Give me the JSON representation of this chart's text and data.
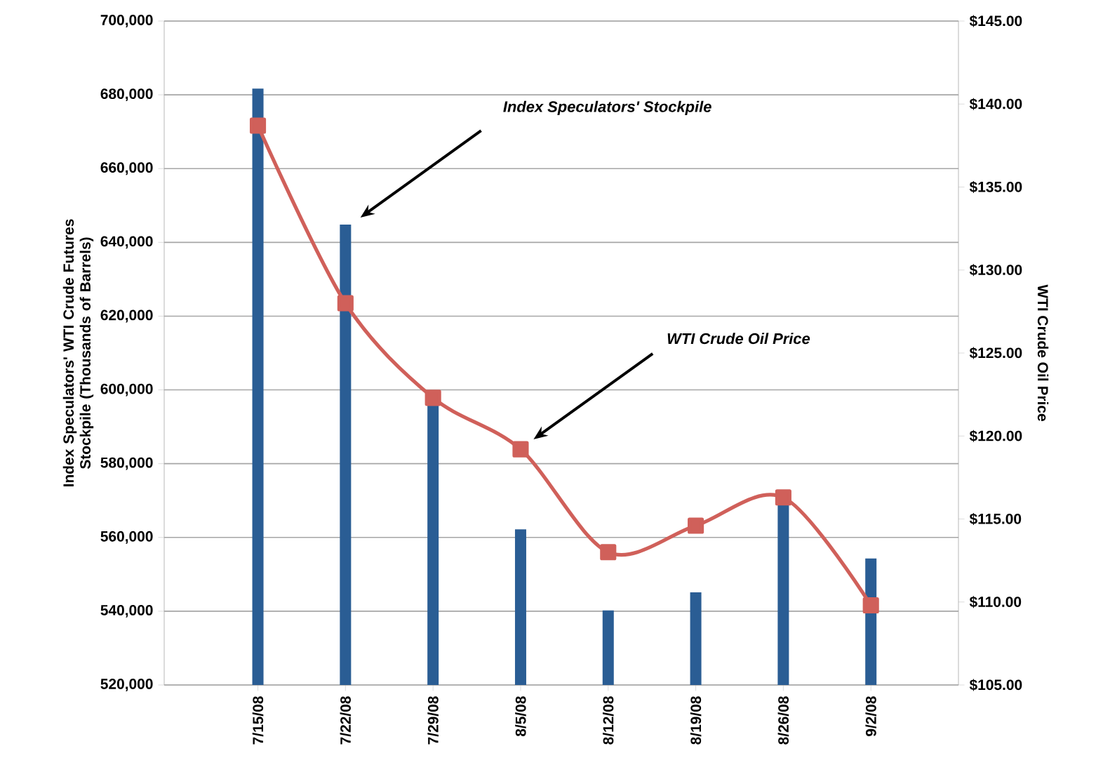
{
  "chart_data": {
    "type": "bar",
    "ylabel": "Index Speculators' WTI Crude Futures Stockpile (Thousands of Barrels)",
    "y2label": "WTI Crude Oil Price",
    "categories": [
      "7/15/08",
      "7/22/08",
      "7/29/08",
      "8/5/08",
      "8/12/08",
      "8/19/08",
      "8/26/08",
      "9/2/08"
    ],
    "series": [
      {
        "color": "#2a5d94",
        "values": [
          681700,
          644800,
          596000,
          562200,
          540200,
          545100,
          569100,
          554300
        ]
      },
      {
        "type": "line",
        "axis": "y2",
        "color": "#d0605a",
        "marker": "square",
        "line_style": "solid",
        "values": [
          138.7,
          128.0,
          122.3,
          119.2,
          113.0,
          114.6,
          116.3,
          109.8
        ]
      }
    ],
    "annotations": [
      "Index Speculators' Stockpile",
      "WTI Crude Oil Price"
    ],
    "ylim": [
      520000,
      700000
    ],
    "yticks": [
      {
        "value": 520000,
        "label": "520,000"
      },
      {
        "value": 540000,
        "label": "540,000"
      },
      {
        "value": 560000,
        "label": "560,000"
      },
      {
        "value": 580000,
        "label": "580,000"
      },
      {
        "value": 600000,
        "label": "600,000"
      },
      {
        "value": 620000,
        "label": "620,000"
      },
      {
        "value": 640000,
        "label": "640,000"
      },
      {
        "value": 660000,
        "label": "660,000"
      },
      {
        "value": 680000,
        "label": "680,000"
      },
      {
        "value": 700000,
        "label": "700,000"
      }
    ],
    "y2lim": [
      105,
      145
    ],
    "y2ticks": [
      {
        "value": 105,
        "label": "$105.00"
      },
      {
        "value": 110,
        "label": "$110.00"
      },
      {
        "value": 115,
        "label": "$115.00"
      },
      {
        "value": 120,
        "label": "$120.00"
      },
      {
        "value": 125,
        "label": "$125.00"
      },
      {
        "value": 130,
        "label": "$130.00"
      },
      {
        "value": 135,
        "label": "$135.00"
      },
      {
        "value": 140,
        "label": "$140.00"
      },
      {
        "value": 145,
        "label": "$145.00"
      }
    ],
    "grid": "y"
  }
}
